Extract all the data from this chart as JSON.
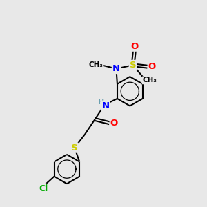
{
  "background_color": "#e8e8e8",
  "atom_colors": {
    "C": "#000000",
    "H": "#6a9faf",
    "N": "#0000ff",
    "O": "#ff0000",
    "S": "#cccc00",
    "Cl": "#00aa00"
  },
  "bond_color": "#000000",
  "bond_width": 1.5,
  "fig_size": [
    3.0,
    3.0
  ],
  "dpi": 100
}
